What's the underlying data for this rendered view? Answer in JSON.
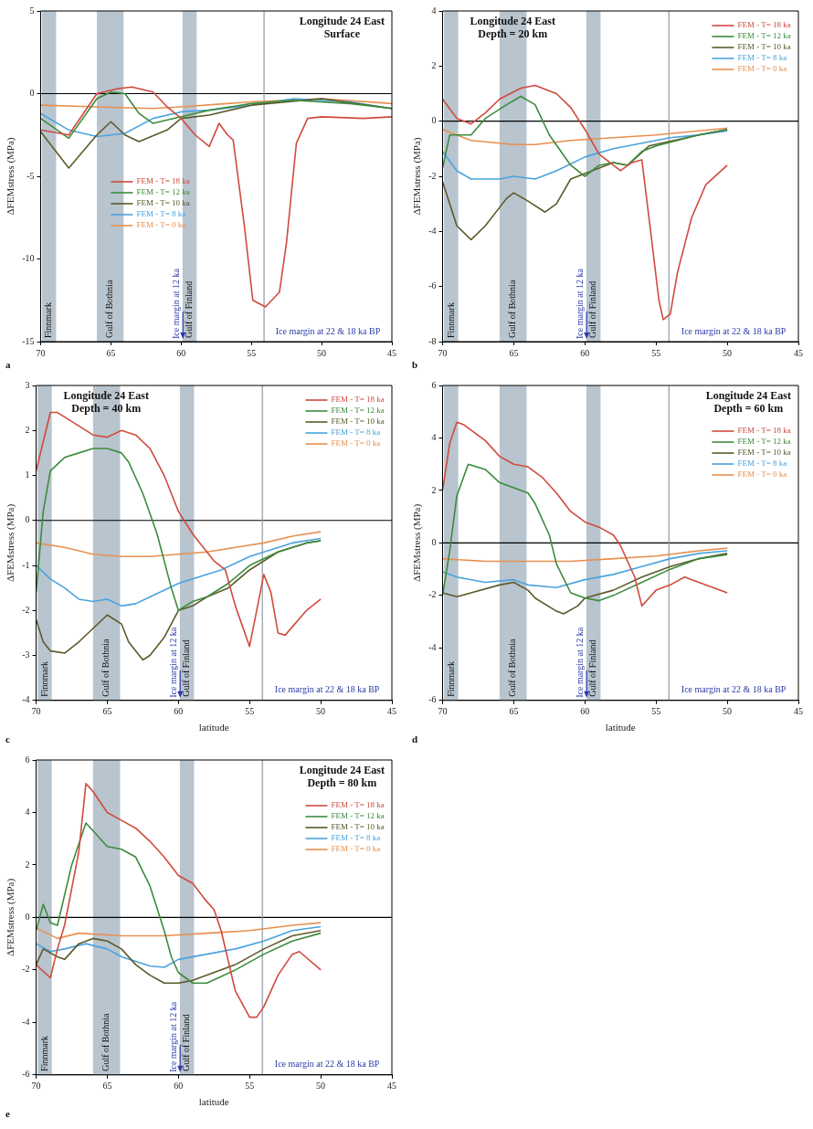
{
  "chart_data": [
    {
      "type": "line",
      "title": "Longitude 24 East",
      "subtitle": "Surface",
      "ylabel": "ΔFEMstress (MPa)",
      "xlim": [
        70,
        45
      ],
      "xticks": [
        70,
        65,
        60,
        55,
        50,
        45
      ],
      "ylim": [
        -15,
        5
      ],
      "yticks": [
        -15,
        -10,
        -5,
        0,
        5
      ],
      "legend": "center left",
      "marker": "none",
      "series": [
        {
          "name": "FEM - T= 18 ka",
          "color": "#d04a3c",
          "x": [
            70,
            68,
            66,
            64.5,
            63.5,
            62,
            61,
            60,
            59,
            58,
            57.3,
            56.7,
            56.3,
            55.5,
            54.9,
            54,
            53,
            52.5,
            51.8,
            51,
            50,
            47,
            45
          ],
          "values": [
            -2.2,
            -2.5,
            0,
            0.3,
            0.4,
            0.1,
            -0.8,
            -1.5,
            -2.5,
            -3.2,
            -1.8,
            -2.5,
            -2.8,
            -8,
            -12.5,
            -12.9,
            -12,
            -9,
            -3,
            -1.5,
            -1.4,
            -1.5,
            -1.4
          ]
        },
        {
          "name": "FEM - T= 12 ka",
          "color": "#3c8c3c",
          "x": [
            70,
            68,
            66,
            65,
            64,
            63,
            62,
            60,
            58,
            55,
            52,
            48,
            45
          ],
          "values": [
            -1.5,
            -2.7,
            -0.3,
            0.1,
            0,
            -1.2,
            -1.8,
            -1.4,
            -1,
            -0.6,
            -0.4,
            -0.6,
            -0.9
          ]
        },
        {
          "name": "FEM - T= 10 ka",
          "color": "#5c5a2a",
          "x": [
            70,
            68,
            66,
            65,
            64,
            63,
            61,
            60,
            58,
            55,
            50,
            45
          ],
          "values": [
            -2.3,
            -4.5,
            -2.5,
            -1.7,
            -2.5,
            -2.9,
            -2.2,
            -1.5,
            -1.3,
            -0.7,
            -0.3,
            -0.9
          ]
        },
        {
          "name": "FEM - T= 8 ka",
          "color": "#4aa3dd",
          "x": [
            70,
            68,
            66,
            64,
            62,
            60,
            58,
            55,
            52,
            48,
            45
          ],
          "values": [
            -1.2,
            -2.2,
            -2.6,
            -2.4,
            -1.5,
            -1.1,
            -1,
            -0.7,
            -0.3,
            -0.5,
            -0.9
          ]
        },
        {
          "name": "FEM - T= 0 ka",
          "color": "#e89050",
          "x": [
            70,
            66,
            62,
            60,
            55,
            50,
            45
          ],
          "values": [
            -0.7,
            -0.8,
            -0.9,
            -0.8,
            -0.5,
            -0.3,
            -0.6
          ]
        }
      ],
      "bands": [
        {
          "axis": "x",
          "from": 69.9,
          "to": 68.9,
          "label": "Finnmark",
          "color": "#b8c4ce"
        },
        {
          "axis": "x",
          "from": 66,
          "to": 64.1,
          "label": "Gulf of Bothnia",
          "color": "#b8c4ce"
        },
        {
          "axis": "x",
          "from": 59.9,
          "to": 58.9,
          "label": "Gulf of Finland",
          "color": "#b8c4ce"
        }
      ],
      "ref_lines": [
        {
          "axis": "y",
          "value": 0,
          "color": "#000000"
        },
        {
          "axis": "x",
          "value": 54.1,
          "label": "Ice margin at 22 & 18 ka BP",
          "color": "#8f9aa5"
        }
      ],
      "annotations": [
        "a",
        "Ice margin at 12 ka"
      ]
    },
    {
      "type": "line",
      "title": "Longitude 24 East",
      "subtitle": "Depth = 20 km",
      "ylabel": "ΔFEMstress (MPa)",
      "xlim": [
        70,
        45
      ],
      "xticks": [
        70,
        65,
        60,
        55,
        50,
        45
      ],
      "ylim": [
        -8,
        4
      ],
      "yticks": [
        -8,
        -6,
        -4,
        -2,
        0,
        2,
        4
      ],
      "legend": "top right",
      "marker": "none",
      "series": [
        {
          "name": "FEM - T= 18 ka",
          "color": "#d04a3c",
          "x": [
            70,
            69,
            68,
            67,
            66,
            64.5,
            63.5,
            62,
            61,
            60,
            59,
            58,
            57.5,
            56.7,
            56,
            55.5,
            54.8,
            54.5,
            54,
            53.5,
            52.5,
            51.5,
            50
          ],
          "values": [
            0.8,
            0.1,
            -0.1,
            0.3,
            0.8,
            1.2,
            1.3,
            1,
            0.5,
            -0.3,
            -1.2,
            -1.6,
            -1.8,
            -1.5,
            -1.4,
            -3.5,
            -6.5,
            -7.2,
            -7,
            -5.5,
            -3.5,
            -2.3,
            -1.6
          ]
        },
        {
          "name": "FEM - T= 12 ka",
          "color": "#3c8c3c",
          "x": [
            70,
            69.5,
            68,
            67,
            65.5,
            64.5,
            63.5,
            62.5,
            61,
            60,
            59,
            58,
            57,
            56,
            55,
            52,
            50
          ],
          "values": [
            -1.7,
            -0.5,
            -0.5,
            0.1,
            0.6,
            0.9,
            0.6,
            -0.5,
            -1.6,
            -2,
            -1.6,
            -1.5,
            -1.6,
            -1.1,
            -0.9,
            -0.5,
            -0.3
          ]
        },
        {
          "name": "FEM - T= 10 ka",
          "color": "#5c5a2a",
          "x": [
            70,
            69,
            68,
            67,
            65.5,
            65,
            64,
            62.8,
            62,
            61,
            60,
            58,
            57,
            55.5,
            52,
            50
          ],
          "values": [
            -2.2,
            -3.8,
            -4.3,
            -3.8,
            -2.8,
            -2.6,
            -2.9,
            -3.3,
            -3,
            -2.1,
            -1.9,
            -1.5,
            -1.6,
            -0.9,
            -0.5,
            -0.3
          ]
        },
        {
          "name": "FEM - T= 8 ka",
          "color": "#4aa3dd",
          "x": [
            70,
            69,
            68,
            66,
            65,
            63.5,
            62,
            60,
            58,
            56,
            54,
            52,
            50
          ],
          "values": [
            -1.1,
            -1.8,
            -2.1,
            -2.1,
            -2,
            -2.1,
            -1.8,
            -1.3,
            -1,
            -0.8,
            -0.6,
            -0.5,
            -0.35
          ]
        },
        {
          "name": "FEM - T= 0 ka",
          "color": "#e89050",
          "x": [
            70,
            68,
            65,
            63.5,
            61,
            58,
            55,
            52,
            50
          ],
          "values": [
            -0.3,
            -0.7,
            -0.85,
            -0.85,
            -0.7,
            -0.6,
            -0.5,
            -0.35,
            -0.25
          ]
        }
      ],
      "bands": [
        {
          "axis": "x",
          "from": 69.9,
          "to": 68.9,
          "label": "Finnmark",
          "color": "#b8c4ce"
        },
        {
          "axis": "x",
          "from": 66,
          "to": 64.1,
          "label": "Gulf of Bothnia",
          "color": "#b8c4ce"
        },
        {
          "axis": "x",
          "from": 59.9,
          "to": 58.9,
          "label": "Gulf of Finland",
          "color": "#b8c4ce"
        }
      ],
      "ref_lines": [
        {
          "axis": "y",
          "value": 0,
          "color": "#000000"
        },
        {
          "axis": "x",
          "value": 54.1,
          "label": "Ice margin at 22 & 18 ka BP",
          "color": "#8f9aa5"
        }
      ],
      "annotations": [
        "b",
        "Ice margin at 12 ka"
      ]
    },
    {
      "type": "line",
      "title": "Longitude 24 East",
      "subtitle": "Depth = 40 km",
      "xlabel": "latitude",
      "ylabel": "ΔFEMstress (MPa)",
      "xlim": [
        70,
        45
      ],
      "xticks": [
        70,
        65,
        60,
        55,
        50,
        45
      ],
      "ylim": [
        -4,
        3
      ],
      "yticks": [
        -4,
        -3,
        -2,
        -1,
        0,
        1,
        2,
        3
      ],
      "legend": "top right",
      "marker": "none",
      "series": [
        {
          "name": "FEM - T= 18 ka",
          "color": "#d04a3c",
          "x": [
            70,
            69,
            68.5,
            67.5,
            66,
            65,
            64,
            63,
            62,
            61,
            60,
            59,
            58,
            57.5,
            56.7,
            56,
            55,
            54.5,
            54,
            53.5,
            53,
            52.5,
            51,
            50
          ],
          "values": [
            1.1,
            2.4,
            2.4,
            2.2,
            1.9,
            1.85,
            2,
            1.9,
            1.6,
            1,
            0.2,
            -0.3,
            -0.7,
            -0.9,
            -1.1,
            -1.9,
            -2.8,
            -2,
            -1.2,
            -1.6,
            -2.5,
            -2.55,
            -2,
            -1.75
          ]
        },
        {
          "name": "FEM - T= 12 ka",
          "color": "#3c8c3c",
          "x": [
            70,
            69.5,
            69,
            68,
            67,
            66,
            65,
            64,
            63.5,
            62.5,
            61.5,
            60.5,
            60,
            59,
            58,
            56.5,
            55,
            53,
            51,
            50
          ],
          "values": [
            -1.6,
            0.2,
            1.1,
            1.4,
            1.5,
            1.6,
            1.6,
            1.5,
            1.3,
            0.6,
            -0.3,
            -1.5,
            -2,
            -1.8,
            -1.7,
            -1.4,
            -1,
            -0.7,
            -0.5,
            -0.45
          ]
        },
        {
          "name": "FEM - T= 10 ka",
          "color": "#5c5a2a",
          "x": [
            70,
            69.5,
            69,
            68,
            67,
            66,
            65,
            64,
            63.5,
            62.5,
            62,
            61,
            60,
            59,
            58,
            56.5,
            55,
            53,
            51,
            50
          ],
          "values": [
            -2.2,
            -2.7,
            -2.9,
            -2.95,
            -2.7,
            -2.4,
            -2.1,
            -2.3,
            -2.7,
            -3.1,
            -3,
            -2.6,
            -2,
            -1.9,
            -1.7,
            -1.5,
            -1.1,
            -0.7,
            -0.5,
            -0.45
          ]
        },
        {
          "name": "FEM - T= 8 ka",
          "color": "#4aa3dd",
          "x": [
            70,
            69,
            68,
            67,
            66,
            65,
            64,
            63,
            62,
            60,
            59,
            57,
            55,
            52,
            50
          ],
          "values": [
            -1,
            -1.3,
            -1.5,
            -1.75,
            -1.8,
            -1.75,
            -1.9,
            -1.85,
            -1.7,
            -1.4,
            -1.3,
            -1.1,
            -0.8,
            -0.5,
            -0.4
          ]
        },
        {
          "name": "FEM - T= 0 ka",
          "color": "#e89050",
          "x": [
            70,
            68,
            66,
            64,
            62,
            60,
            58,
            56,
            54,
            52,
            50
          ],
          "values": [
            -0.5,
            -0.6,
            -0.75,
            -0.8,
            -0.8,
            -0.75,
            -0.7,
            -0.6,
            -0.5,
            -0.35,
            -0.25
          ]
        }
      ],
      "bands": [
        {
          "axis": "x",
          "from": 69.9,
          "to": 68.9,
          "label": "Finnmark",
          "color": "#b8c4ce"
        },
        {
          "axis": "x",
          "from": 66,
          "to": 64.1,
          "label": "Gulf of Bothnia",
          "color": "#b8c4ce"
        },
        {
          "axis": "x",
          "from": 59.9,
          "to": 58.9,
          "label": "Gulf of Finland",
          "color": "#b8c4ce"
        }
      ],
      "ref_lines": [
        {
          "axis": "y",
          "value": 0,
          "color": "#000000"
        },
        {
          "axis": "x",
          "value": 54.1,
          "label": "Ice margin at 22 & 18 ka BP",
          "color": "#8f9aa5"
        }
      ],
      "annotations": [
        "c",
        "Ice margin at 12 ka"
      ]
    },
    {
      "type": "line",
      "title": "Longitude 24 East",
      "subtitle": "Depth = 60 km",
      "xlabel": "latitude",
      "ylabel": "ΔFEMstress (MPa)",
      "xlim": [
        70,
        45
      ],
      "xticks": [
        70,
        65,
        60,
        55,
        50,
        45
      ],
      "ylim": [
        -6,
        6
      ],
      "yticks": [
        -6,
        -4,
        -2,
        0,
        2,
        4,
        6
      ],
      "legend": "top right",
      "marker": "none",
      "series": [
        {
          "name": "FEM - T= 18 ka",
          "color": "#d04a3c",
          "x": [
            70,
            69.5,
            69,
            68.5,
            67,
            66,
            65,
            64,
            63,
            62,
            61,
            60,
            59,
            58,
            57.5,
            56.5,
            56,
            55.5,
            55,
            54,
            53,
            52,
            50
          ],
          "values": [
            2,
            3.8,
            4.6,
            4.5,
            3.9,
            3.3,
            3,
            2.9,
            2.5,
            1.9,
            1.2,
            0.8,
            0.6,
            0.3,
            -0.1,
            -1.3,
            -2.4,
            -2.1,
            -1.8,
            -1.6,
            -1.3,
            -1.5,
            -1.9
          ]
        },
        {
          "name": "FEM - T= 12 ka",
          "color": "#3c8c3c",
          "x": [
            70,
            69.5,
            69,
            68.2,
            67,
            66,
            65,
            64,
            63.5,
            62.5,
            62,
            61,
            60,
            59,
            58,
            56,
            54,
            52,
            50
          ],
          "values": [
            -2,
            -0.3,
            1.8,
            3,
            2.8,
            2.3,
            2.1,
            1.9,
            1.5,
            0.3,
            -0.8,
            -1.9,
            -2.1,
            -2.2,
            -2,
            -1.5,
            -1,
            -0.6,
            -0.45
          ]
        },
        {
          "name": "FEM - T= 10 ka",
          "color": "#5c5a2a",
          "x": [
            70,
            69,
            68,
            66,
            65,
            64,
            63.5,
            62,
            61.5,
            60.5,
            60,
            58,
            56,
            54,
            52,
            50
          ],
          "values": [
            -1.9,
            -2.05,
            -1.9,
            -1.6,
            -1.5,
            -1.8,
            -2.1,
            -2.6,
            -2.7,
            -2.4,
            -2.1,
            -1.8,
            -1.3,
            -0.9,
            -0.6,
            -0.4
          ]
        },
        {
          "name": "FEM - T= 8 ka",
          "color": "#4aa3dd",
          "x": [
            70,
            69,
            67,
            65,
            64,
            62,
            60,
            58,
            56,
            54,
            52,
            50
          ],
          "values": [
            -1.1,
            -1.3,
            -1.5,
            -1.4,
            -1.6,
            -1.7,
            -1.4,
            -1.2,
            -0.9,
            -0.6,
            -0.4,
            -0.3
          ]
        },
        {
          "name": "FEM - T= 0 ka",
          "color": "#e89050",
          "x": [
            70,
            67,
            64,
            61,
            58,
            55,
            52,
            50
          ],
          "values": [
            -0.6,
            -0.7,
            -0.7,
            -0.7,
            -0.6,
            -0.5,
            -0.3,
            -0.2
          ]
        }
      ],
      "bands": [
        {
          "axis": "x",
          "from": 69.9,
          "to": 68.9,
          "label": "Finnmark",
          "color": "#b8c4ce"
        },
        {
          "axis": "x",
          "from": 66,
          "to": 64.1,
          "label": "Gulf of Bothnia",
          "color": "#b8c4ce"
        },
        {
          "axis": "x",
          "from": 59.9,
          "to": 58.9,
          "label": "Gulf of Finland",
          "color": "#b8c4ce"
        }
      ],
      "ref_lines": [
        {
          "axis": "y",
          "value": 0,
          "color": "#000000"
        },
        {
          "axis": "x",
          "value": 54.1,
          "label": "Ice margin at 22 & 18 ka BP",
          "color": "#8f9aa5"
        }
      ],
      "annotations": [
        "d",
        "Ice margin at 12 ka"
      ]
    },
    {
      "type": "line",
      "title": "Longitude 24 East",
      "subtitle": "Depth = 80 km",
      "xlabel": "latitude",
      "ylabel": "ΔFEMstress (MPa)",
      "xlim": [
        70,
        45
      ],
      "xticks": [
        70,
        65,
        60,
        55,
        50,
        45
      ],
      "ylim": [
        -6,
        6
      ],
      "yticks": [
        -6,
        -4,
        -2,
        0,
        2,
        4,
        6
      ],
      "legend": "top right",
      "marker": "none",
      "series": [
        {
          "name": "FEM - T= 18 ka",
          "color": "#d04a3c",
          "x": [
            70,
            69,
            68.5,
            68,
            67,
            66.5,
            66,
            65,
            64,
            63,
            62,
            61,
            60,
            59,
            58,
            57.5,
            57,
            56,
            55,
            54.5,
            54,
            53,
            52,
            51.5,
            50
          ],
          "values": [
            -1.8,
            -2.3,
            -1.2,
            -0.3,
            2.5,
            5.1,
            4.8,
            4,
            3.7,
            3.4,
            2.9,
            2.3,
            1.6,
            1.3,
            0.6,
            0.3,
            -0.5,
            -2.8,
            -3.8,
            -3.8,
            -3.4,
            -2.2,
            -1.4,
            -1.3,
            -2
          ]
        },
        {
          "name": "FEM - T= 12 ka",
          "color": "#3c8c3c",
          "x": [
            70,
            69.5,
            69,
            68.5,
            67.5,
            66.5,
            66,
            65,
            64,
            63,
            62,
            61,
            60.5,
            60,
            59,
            58,
            56,
            54,
            52,
            50
          ],
          "values": [
            -0.5,
            0.5,
            -0.2,
            -0.3,
            2,
            3.6,
            3.3,
            2.7,
            2.6,
            2.3,
            1.2,
            -0.5,
            -1.5,
            -2.1,
            -2.5,
            -2.5,
            -2,
            -1.4,
            -0.9,
            -0.6
          ]
        },
        {
          "name": "FEM - T= 10 ka",
          "color": "#5c5a2a",
          "x": [
            70,
            69.5,
            68.5,
            68,
            67,
            66,
            65,
            64,
            63,
            62,
            61,
            60,
            59,
            58,
            56,
            54,
            52,
            50
          ],
          "values": [
            -1.8,
            -1.2,
            -1.5,
            -1.6,
            -1,
            -0.8,
            -0.9,
            -1.2,
            -1.8,
            -2.2,
            -2.5,
            -2.5,
            -2.4,
            -2.2,
            -1.8,
            -1.2,
            -0.7,
            -0.5
          ]
        },
        {
          "name": "FEM - T= 8 ka",
          "color": "#4aa3dd",
          "x": [
            70,
            69,
            68,
            66.5,
            65,
            64,
            62,
            61,
            60,
            58,
            56,
            54,
            52,
            50
          ],
          "values": [
            -1,
            -1.3,
            -1.2,
            -1,
            -1.2,
            -1.5,
            -1.85,
            -1.9,
            -1.6,
            -1.4,
            -1.2,
            -0.9,
            -0.5,
            -0.35
          ]
        },
        {
          "name": "FEM - T= 0 ka",
          "color": "#e89050",
          "x": [
            70,
            68.5,
            67,
            64,
            61,
            58,
            55,
            52,
            50
          ],
          "values": [
            -0.4,
            -0.8,
            -0.6,
            -0.7,
            -0.7,
            -0.6,
            -0.5,
            -0.3,
            -0.2
          ]
        }
      ],
      "bands": [
        {
          "axis": "x",
          "from": 69.9,
          "to": 68.9,
          "label": "Finnmark",
          "color": "#b8c4ce"
        },
        {
          "axis": "x",
          "from": 66,
          "to": 64.1,
          "label": "Gulf of Bothnia",
          "color": "#b8c4ce"
        },
        {
          "axis": "x",
          "from": 59.9,
          "to": 58.9,
          "label": "Gulf of Finland",
          "color": "#b8c4ce"
        }
      ],
      "ref_lines": [
        {
          "axis": "y",
          "value": 0,
          "color": "#000000"
        },
        {
          "axis": "x",
          "value": 54.1,
          "label": "Ice margin at 22 & 18 ka BP",
          "color": "#8f9aa5"
        }
      ],
      "annotations": [
        "e",
        "Ice margin at 12 ka"
      ]
    }
  ]
}
